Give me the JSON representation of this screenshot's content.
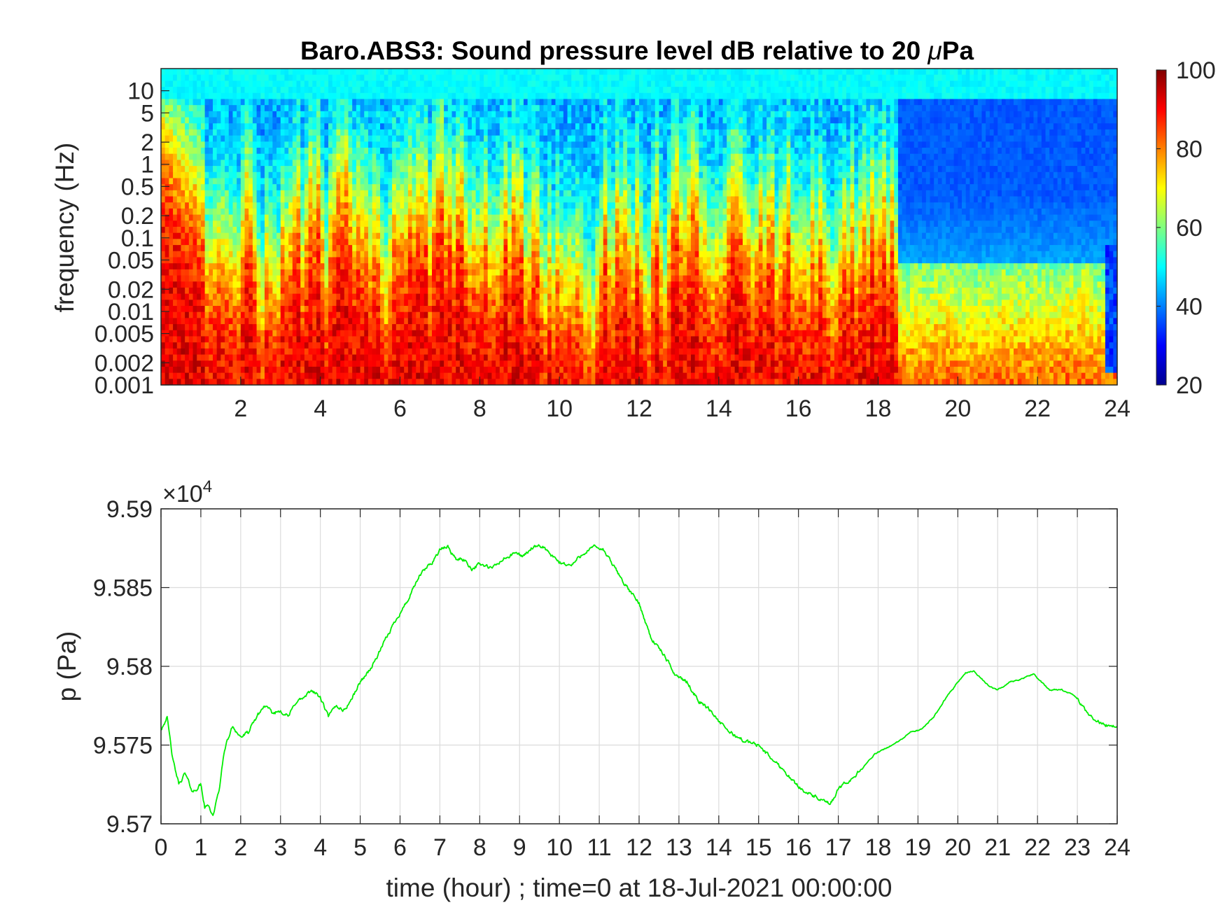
{
  "chart_data": [
    {
      "type": "heatmap",
      "title_text": "Baro.ABS3: Sound pressure level dB relative to 20 ",
      "title_mu": "μ",
      "title_unit": "Pa",
      "ylabel": "frequency (Hz)",
      "y_scale": "log",
      "xlim": [
        0,
        24
      ],
      "ylim": [
        0.001,
        20
      ],
      "x_ticks": [
        "2",
        "4",
        "6",
        "8",
        "10",
        "12",
        "14",
        "16",
        "18",
        "20",
        "22",
        "24"
      ],
      "y_ticks": [
        "10",
        "5",
        "2",
        "1",
        "0.5",
        "0.2",
        "0.1",
        "0.05",
        "0.02",
        "0.01",
        "0.005",
        "0.002",
        "0.001"
      ],
      "colormap": "jet",
      "color_range": [
        20,
        100
      ],
      "colorbar_ticks": [
        "100",
        "80",
        "60",
        "40",
        "20"
      ],
      "grid": false,
      "notable_features": {
        "regime_change_hour": 18.5,
        "high_level_db": 92,
        "quiet_band_db_after_change": 35,
        "high_freq_floor_db": 50
      }
    },
    {
      "type": "line",
      "ylabel": "p (Pa)",
      "xlabel": "time (hour) ; time=0 at 18-Jul-2021 00:00:00",
      "xlim": [
        0,
        24
      ],
      "ylim": [
        95700,
        95900
      ],
      "y_exponent_label": "×10",
      "y_exponent_power": "4",
      "x_ticks": [
        "0",
        "1",
        "2",
        "3",
        "4",
        "5",
        "6",
        "7",
        "8",
        "9",
        "10",
        "11",
        "12",
        "13",
        "14",
        "15",
        "16",
        "17",
        "18",
        "19",
        "20",
        "21",
        "22",
        "23",
        "24"
      ],
      "y_ticks": [
        "9.57",
        "9.575",
        "9.58",
        "9.585",
        "9.59"
      ],
      "grid": true,
      "series": [
        {
          "color": "#00ee00",
          "x": [
            0.0,
            0.15,
            0.3,
            0.45,
            0.6,
            0.8,
            1.0,
            1.1,
            1.2,
            1.3,
            1.45,
            1.6,
            1.8,
            2.0,
            2.2,
            2.4,
            2.6,
            2.8,
            3.0,
            3.2,
            3.4,
            3.6,
            3.8,
            4.0,
            4.2,
            4.4,
            4.6,
            4.8,
            5.0,
            5.3,
            5.6,
            5.9,
            6.2,
            6.5,
            6.8,
            7.0,
            7.2,
            7.4,
            7.6,
            7.8,
            8.0,
            8.3,
            8.6,
            8.9,
            9.1,
            9.3,
            9.6,
            9.8,
            10.0,
            10.3,
            10.6,
            10.9,
            11.1,
            11.4,
            11.7,
            12.0,
            12.3,
            12.6,
            12.9,
            13.2,
            13.5,
            13.8,
            14.1,
            14.4,
            14.7,
            15.0,
            15.3,
            15.6,
            15.9,
            16.2,
            16.5,
            16.8,
            17.0,
            17.3,
            17.6,
            17.9,
            18.2,
            18.5,
            18.8,
            19.1,
            19.4,
            19.7,
            20.0,
            20.2,
            20.4,
            20.6,
            20.8,
            21.0,
            21.3,
            21.6,
            21.9,
            22.1,
            22.3,
            22.6,
            22.9,
            23.2,
            23.5,
            23.8,
            24.0
          ],
          "y": [
            95760,
            95768,
            95740,
            95725,
            95732,
            95720,
            95725,
            95710,
            95712,
            95705,
            95720,
            95748,
            95762,
            95755,
            95758,
            95768,
            95775,
            95770,
            95772,
            95768,
            95778,
            95780,
            95785,
            95780,
            95768,
            95775,
            95772,
            95780,
            95790,
            95800,
            95815,
            95830,
            95842,
            95858,
            95866,
            95874,
            95876,
            95868,
            95868,
            95862,
            95865,
            95862,
            95868,
            95872,
            95870,
            95875,
            95876,
            95870,
            95866,
            95864,
            95872,
            95876,
            95874,
            95862,
            95850,
            95840,
            95818,
            95808,
            95795,
            95790,
            95778,
            95772,
            95762,
            95756,
            95752,
            95750,
            95742,
            95735,
            95726,
            95720,
            95716,
            95712,
            95722,
            95728,
            95735,
            95744,
            95748,
            95752,
            95758,
            95760,
            95768,
            95780,
            95790,
            95796,
            95797,
            95792,
            95787,
            95785,
            95790,
            95792,
            95795,
            95790,
            95785,
            95785,
            95782,
            95772,
            95765,
            95762,
            95762
          ],
          "noise": 2.4
        }
      ]
    }
  ]
}
